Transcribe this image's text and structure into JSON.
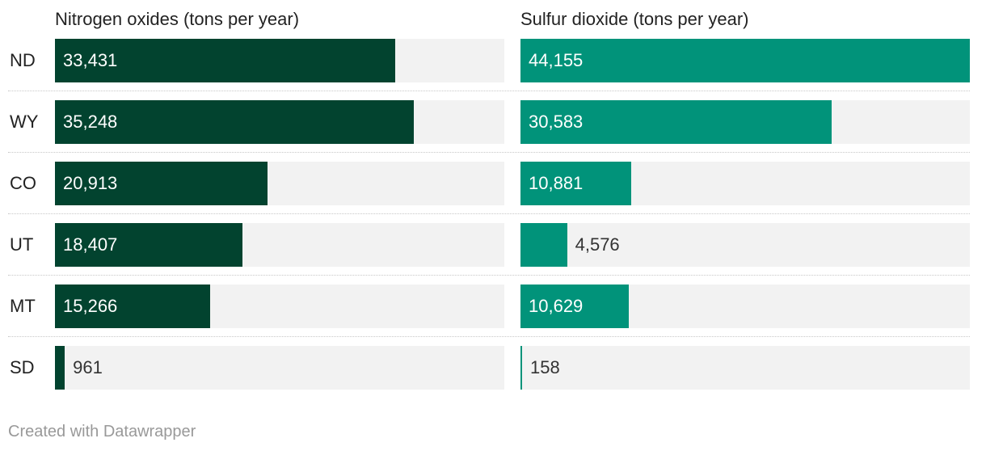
{
  "chart_data": {
    "type": "bar",
    "categories": [
      "ND",
      "WY",
      "CO",
      "UT",
      "MT",
      "SD"
    ],
    "series": [
      {
        "name": "Nitrogen oxides (tons per year)",
        "values": [
          33431,
          35248,
          20913,
          18407,
          15266,
          961
        ],
        "labels": [
          "33,431",
          "35,248",
          "20,913",
          "18,407",
          "15,266",
          "961"
        ],
        "color": "#02432f",
        "max": 44155
      },
      {
        "name": "Sulfur dioxide (tons per year)",
        "values": [
          44155,
          30583,
          10881,
          4576,
          10629,
          158
        ],
        "labels": [
          "44,155",
          "30,583",
          "10,881",
          "4,576",
          "10,629",
          "158"
        ],
        "color": "#01937a",
        "max": 44155
      }
    ],
    "track_color": "#f2f2f2"
  },
  "footer": {
    "credit": "Created with Datawrapper"
  }
}
